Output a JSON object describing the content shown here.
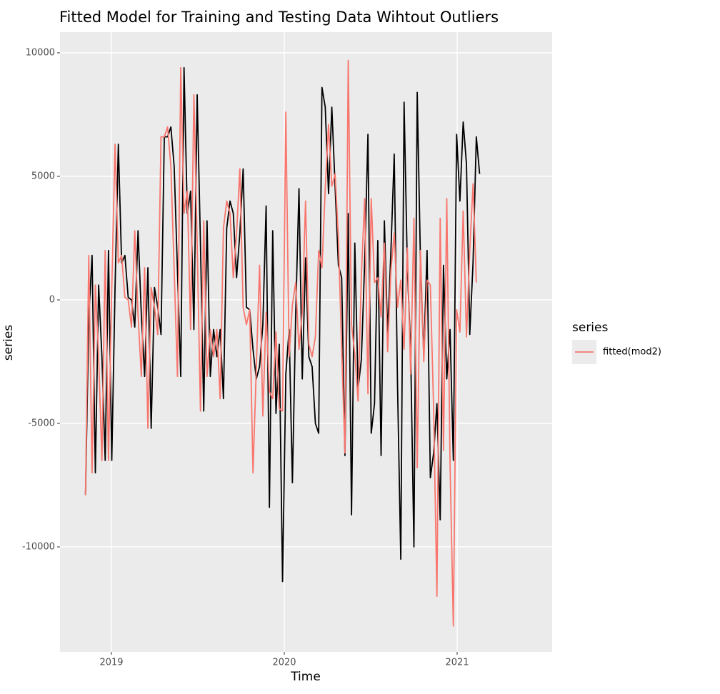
{
  "chart_data": {
    "type": "line",
    "title": "Fitted Model for Training and Testing Data Wihtout Outliers",
    "x_label": "Time",
    "y_label": "series",
    "legend_title": "series",
    "legend_position": "right",
    "grid": true,
    "xlim": [
      2018.7025,
      2021.5496
    ],
    "ylim": [
      -14249,
      10838
    ],
    "xticks": [
      2019,
      2020,
      2021
    ],
    "yticks": [
      -10000,
      -5000,
      0,
      5000,
      10000
    ],
    "x": [
      2018.85,
      2018.869,
      2018.888,
      2018.907,
      2018.926,
      2018.945,
      2018.964,
      2018.983,
      2019.002,
      2019.021,
      2019.04,
      2019.059,
      2019.078,
      2019.097,
      2019.116,
      2019.135,
      2019.154,
      2019.173,
      2019.192,
      2019.211,
      2019.23,
      2019.249,
      2019.268,
      2019.287,
      2019.306,
      2019.325,
      2019.344,
      2019.363,
      2019.382,
      2019.401,
      2019.42,
      2019.439,
      2019.458,
      2019.477,
      2019.496,
      2019.515,
      2019.534,
      2019.553,
      2019.572,
      2019.591,
      2019.61,
      2019.629,
      2019.648,
      2019.667,
      2019.686,
      2019.705,
      2019.724,
      2019.743,
      2019.762,
      2019.781,
      2019.8,
      2019.819,
      2019.838,
      2019.857,
      2019.876,
      2019.895,
      2019.914,
      2019.933,
      2019.952,
      2019.971,
      2019.99,
      2020.009,
      2020.028,
      2020.047,
      2020.066,
      2020.085,
      2020.104,
      2020.123,
      2020.142,
      2020.161,
      2020.18,
      2020.199,
      2020.218,
      2020.237,
      2020.256,
      2020.275,
      2020.294,
      2020.313,
      2020.332,
      2020.351,
      2020.37,
      2020.389,
      2020.408,
      2020.427,
      2020.446,
      2020.465,
      2020.484,
      2020.503,
      2020.522,
      2020.541,
      2020.56,
      2020.579,
      2020.598,
      2020.617,
      2020.636,
      2020.655,
      2020.674,
      2020.693,
      2020.712,
      2020.731,
      2020.75,
      2020.769,
      2020.788,
      2020.807,
      2020.826,
      2020.845,
      2020.864,
      2020.883,
      2020.902,
      2020.921,
      2020.94,
      2020.959,
      2020.978,
      2020.997,
      2021.016,
      2021.035,
      2021.054,
      2021.073,
      2021.092,
      2021.111,
      2021.13
    ],
    "series": [
      {
        "color": "#000000",
        "values": [
          -7900,
          -700,
          1800,
          -7000,
          600,
          -2300,
          -6500,
          2000,
          -6500,
          500,
          6300,
          1500,
          1800,
          100,
          0,
          -1100,
          2800,
          -600,
          -3100,
          1300,
          -5200,
          500,
          -300,
          -1400,
          6600,
          6600,
          7000,
          5400,
          1200,
          -3100,
          9400,
          3500,
          4400,
          -1200,
          8300,
          2300,
          -4500,
          3200,
          -3100,
          -1200,
          -2300,
          -1200,
          -4000,
          2900,
          4000,
          3500,
          900,
          2700,
          5300,
          -300,
          -400,
          -2000,
          -3200,
          -2700,
          -1000,
          3800,
          -8400,
          2800,
          -4600,
          -1800,
          -11400,
          -3000,
          -1200,
          -7400,
          -600,
          4500,
          -3200,
          1700,
          -2300,
          -2700,
          -5000,
          -5400,
          8600,
          7800,
          4300,
          7800,
          4600,
          1400,
          900,
          -6300,
          3500,
          -8700,
          2300,
          -3600,
          -2400,
          1500,
          6700,
          -5400,
          -4200,
          2400,
          -6300,
          3200,
          -1400,
          2000,
          5900,
          -3400,
          -10500,
          8000,
          1300,
          -2000,
          -10000,
          8400,
          1500,
          -2300,
          2000,
          -7200,
          -6200,
          -4200,
          -8900,
          1400,
          -3200,
          -1200,
          -6500,
          6700,
          4000,
          7200,
          5500,
          -1400,
          1500,
          6600,
          5100
        ]
      },
      {
        "name": "fitted(mod2)",
        "color": "#F8766D",
        "values": [
          -7900,
          1800,
          -7000,
          600,
          -2300,
          -6500,
          2000,
          -6500,
          500,
          6300,
          1500,
          1800,
          100,
          0,
          -1100,
          2800,
          -600,
          -3100,
          1300,
          -5200,
          500,
          -300,
          -1400,
          6600,
          6600,
          7000,
          5400,
          1200,
          -3100,
          9400,
          3500,
          4400,
          -1200,
          8300,
          2300,
          -4500,
          3200,
          -3100,
          -1200,
          -2300,
          -1200,
          -4000,
          2900,
          4000,
          3500,
          900,
          2700,
          5300,
          -300,
          -1000,
          -400,
          -7000,
          -2800,
          1400,
          -4700,
          -500,
          -3700,
          -4000,
          -1300,
          -4400,
          -4500,
          7600,
          -2300,
          -200,
          700,
          -2000,
          -500,
          4000,
          -1800,
          -2300,
          -1500,
          2000,
          1300,
          4500,
          7100,
          4600,
          5100,
          2500,
          -2000,
          -6200,
          9700,
          -1000,
          -2200,
          -4100,
          1000,
          4100,
          -3800,
          4100,
          700,
          900,
          -700,
          2300,
          -2100,
          1200,
          2700,
          -300,
          800,
          -2000,
          2100,
          -3000,
          3300,
          -6800,
          2000,
          -2500,
          800,
          600,
          -4400,
          -12000,
          3300,
          -6100,
          4100,
          -6600,
          -13200,
          -400,
          -1300,
          3600,
          -1500,
          2000,
          4700,
          700,
          null
        ]
      }
    ]
  }
}
